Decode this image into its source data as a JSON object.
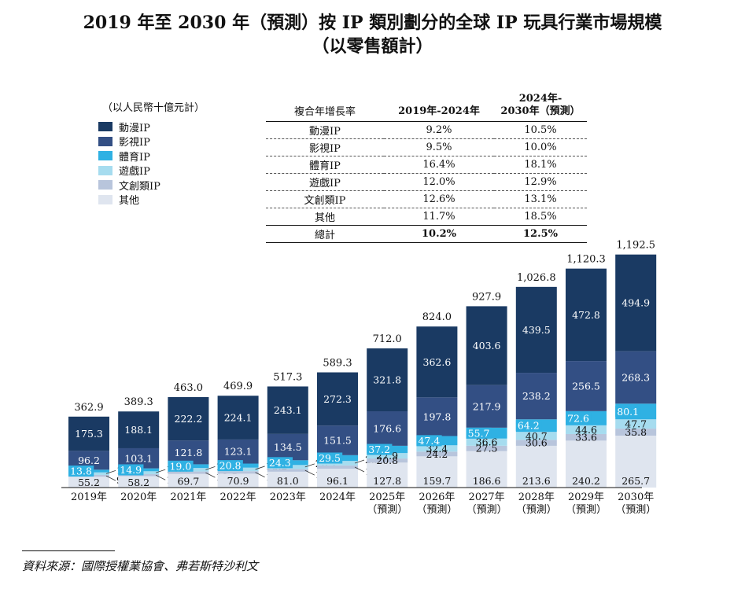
{
  "title": {
    "line1": "2019 年至 2030 年（預測）按 IP 類別劃分的全球 IP 玩具行業市場規模",
    "line2": "（以零售額計）"
  },
  "unit_label": "（以人民幣十億元計）",
  "legend": [
    {
      "name": "動漫IP",
      "color": "#1a3a63"
    },
    {
      "name": "影視IP",
      "color": "#334f84"
    },
    {
      "name": "體育IP",
      "color": "#2fb1e3"
    },
    {
      "name": "遊戲IP",
      "color": "#a6dcef"
    },
    {
      "name": "文創類IP",
      "color": "#b8c5dc"
    },
    {
      "name": "其他",
      "color": "#dfe5ef"
    }
  ],
  "cagr_table": {
    "header": {
      "category": "複合年增長率",
      "period1": "2019年-2024年",
      "period2_line1": "2024年-",
      "period2_line2": "2030年（預測）"
    },
    "rows": [
      {
        "label": "動漫IP",
        "p1": "9.2%",
        "p2": "10.5%"
      },
      {
        "label": "影視IP",
        "p1": "9.5%",
        "p2": "10.0%"
      },
      {
        "label": "體育IP",
        "p1": "16.4%",
        "p2": "18.1%"
      },
      {
        "label": "遊戲IP",
        "p1": "12.0%",
        "p2": "12.9%"
      },
      {
        "label": "文創類IP",
        "p1": "12.6%",
        "p2": "13.1%"
      },
      {
        "label": "其他",
        "p1": "11.7%",
        "p2": "18.5%"
      }
    ],
    "total": {
      "label": "總計",
      "p1": "10.2%",
      "p2": "12.5%"
    }
  },
  "chart_data": {
    "type": "bar",
    "stacked": true,
    "unit": "人民幣十億元",
    "categories": [
      "2019年",
      "2020年",
      "2021年",
      "2022年",
      "2023年",
      "2024年",
      "2025年",
      "2026年",
      "2027年",
      "2028年",
      "2029年",
      "2030年"
    ],
    "category_sublabels": [
      "",
      "",
      "",
      "",
      "",
      "",
      "（預測）",
      "（預測）",
      "（預測）",
      "（預測）",
      "（預測）",
      "（預測）"
    ],
    "series": [
      {
        "name": "其他",
        "values": [
          55.2,
          58.2,
          69.7,
          70.9,
          81.0,
          96.1,
          127.8,
          159.7,
          186.6,
          213.6,
          240.2,
          265.7
        ]
      },
      {
        "name": "文創類IP",
        "values": [
          9.4,
          10.3,
          12.5,
          12.8,
          14.3,
          17.1,
          20.8,
          24.2,
          27.5,
          30.6,
          33.6,
          35.8
        ]
      },
      {
        "name": "遊戲IP",
        "values": [
          13.1,
          14.8,
          17.8,
          18.2,
          20.1,
          23.0,
          27.9,
          32.4,
          36.6,
          40.7,
          44.6,
          47.7
        ]
      },
      {
        "name": "體育IP",
        "values": [
          13.8,
          14.9,
          19.0,
          20.8,
          24.3,
          29.5,
          37.2,
          47.4,
          55.7,
          64.2,
          72.6,
          80.1
        ]
      },
      {
        "name": "影視IP",
        "values": [
          96.2,
          103.1,
          121.8,
          123.1,
          134.5,
          151.5,
          176.6,
          197.8,
          217.9,
          238.2,
          256.5,
          268.3
        ]
      },
      {
        "name": "動漫IP",
        "values": [
          175.3,
          188.1,
          222.2,
          224.1,
          243.1,
          272.3,
          321.8,
          362.6,
          403.6,
          439.5,
          472.8,
          494.9
        ]
      }
    ],
    "totals": [
      362.9,
      389.3,
      463.0,
      469.9,
      517.3,
      589.3,
      712.0,
      824.0,
      927.9,
      1026.8,
      1120.3,
      1192.5
    ],
    "total_labels": [
      "362.9",
      "389.3",
      "463.0",
      "469.9",
      "517.3",
      "589.3",
      "712.0",
      "824.0",
      "927.9",
      "1,026.8",
      "1,120.3",
      "1,192.5"
    ]
  },
  "source": "資料來源：國際授權業協會、弗若斯特沙利文"
}
